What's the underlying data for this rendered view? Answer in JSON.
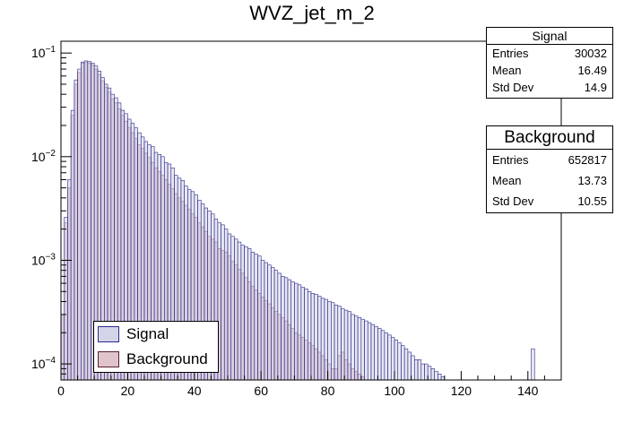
{
  "chart_data": {
    "type": "histogram",
    "title": "WVZ_jet_m_2",
    "xlabel": "",
    "ylabel": "",
    "xlim": [
      0,
      150
    ],
    "ylim": [
      7e-05,
      0.13
    ],
    "yscale": "log",
    "bin_width": 1,
    "x_ticks": [
      0,
      20,
      40,
      60,
      80,
      100,
      120,
      140
    ],
    "y_ticks": [
      {
        "value": 0.1,
        "base": "10",
        "exp": "−1"
      },
      {
        "value": 0.01,
        "base": "10",
        "exp": "−2"
      },
      {
        "value": 0.001,
        "base": "10",
        "exp": "−3"
      },
      {
        "value": 0.0001,
        "base": "10",
        "exp": "−4"
      }
    ],
    "series": [
      {
        "name": "Signal",
        "line_color": "#2b2b8c",
        "fill_color": "#d4d4e8",
        "values": [
          0.0003,
          0.0026,
          0.006,
          0.028,
          0.055,
          0.07,
          0.082,
          0.084,
          0.083,
          0.08,
          0.075,
          0.067,
          0.058,
          0.05,
          0.046,
          0.04,
          0.037,
          0.033,
          0.028,
          0.026,
          0.023,
          0.021,
          0.019,
          0.017,
          0.0155,
          0.014,
          0.013,
          0.0125,
          0.011,
          0.0105,
          0.01,
          0.0088,
          0.0085,
          0.0078,
          0.0066,
          0.0062,
          0.0059,
          0.0052,
          0.0048,
          0.0046,
          0.0043,
          0.0038,
          0.0035,
          0.0032,
          0.003,
          0.0028,
          0.0025,
          0.0023,
          0.0022,
          0.002,
          0.0018,
          0.0017,
          0.0016,
          0.0015,
          0.0014,
          0.00135,
          0.0013,
          0.0012,
          0.00115,
          0.0011,
          0.001,
          0.00095,
          0.0009,
          0.00085,
          0.0008,
          0.00075,
          0.0007,
          0.00068,
          0.00065,
          0.00062,
          0.0006,
          0.00058,
          0.00055,
          0.00053,
          0.0005,
          0.00048,
          0.00047,
          0.00045,
          0.00043,
          0.00042,
          0.0004,
          0.00039,
          0.00037,
          0.00036,
          0.00034,
          0.00033,
          0.00032,
          0.0003,
          0.00029,
          0.00028,
          0.00027,
          0.00026,
          0.00025,
          0.00024,
          0.00023,
          0.00022,
          0.00021,
          0.0002,
          0.00019,
          0.00018,
          0.00017,
          0.00016,
          0.00015,
          0.00014,
          0.00013,
          0.00012,
          0.00011,
          0.00011,
          0.0001,
          0.0001,
          9.5e-05,
          9e-05,
          8.5e-05,
          8e-05,
          7.5e-05,
          7e-05,
          7e-05,
          7e-05,
          7e-05,
          7e-05,
          7e-05,
          7e-05,
          7e-05,
          7e-05,
          7e-05,
          7e-05,
          7e-05,
          7e-05,
          7e-05,
          7e-05,
          7e-05,
          7e-05,
          7e-05,
          7e-05,
          7e-05,
          7e-05,
          7e-05,
          7e-05,
          7e-05,
          7e-05,
          7e-05,
          0.00014,
          7e-05,
          7e-05,
          7e-05,
          7e-05,
          7e-05,
          7e-05
        ]
      },
      {
        "name": "Background",
        "line_color": "#5a1e2e",
        "fill_color": "#e0c4cc",
        "values": [
          0.0003,
          0.0023,
          0.005,
          0.025,
          0.05,
          0.065,
          0.08,
          0.081,
          0.08,
          0.077,
          0.07,
          0.062,
          0.054,
          0.047,
          0.042,
          0.036,
          0.033,
          0.029,
          0.025,
          0.022,
          0.019,
          0.017,
          0.015,
          0.013,
          0.012,
          0.0108,
          0.0098,
          0.0088,
          0.0078,
          0.0072,
          0.0066,
          0.006,
          0.0054,
          0.0049,
          0.0044,
          0.004,
          0.0037,
          0.0034,
          0.0031,
          0.0028,
          0.0026,
          0.0023,
          0.0021,
          0.0019,
          0.0017,
          0.0016,
          0.0015,
          0.0013,
          0.00125,
          0.0012,
          0.0011,
          0.00098,
          0.0009,
          0.00082,
          0.00075,
          0.00068,
          0.00062,
          0.00056,
          0.00052,
          0.00048,
          0.00044,
          0.00041,
          0.00038,
          0.00035,
          0.00032,
          0.0003,
          0.00028,
          0.00026,
          0.00024,
          0.00022,
          0.0002,
          0.00019,
          0.00018,
          0.00017,
          0.00016,
          0.00015,
          0.00014,
          0.00013,
          0.00012,
          0.00011,
          0.0001,
          9e-05,
          9e-05,
          0.00012,
          0.00013,
          0.00011,
          0.0001,
          9e-05,
          8.5e-05,
          8e-05,
          7.5e-05,
          7e-05,
          7e-05,
          7e-05,
          7e-05,
          7e-05,
          7e-05,
          7e-05,
          7e-05,
          7e-05,
          7e-05,
          7e-05,
          7e-05,
          7e-05,
          7e-05,
          7e-05,
          7e-05,
          7e-05,
          7e-05,
          7e-05,
          7e-05,
          7e-05,
          7e-05,
          7e-05,
          7e-05,
          7e-05,
          7e-05,
          7e-05,
          7e-05,
          7e-05,
          7e-05,
          7e-05,
          7e-05,
          7e-05,
          7e-05,
          7e-05,
          7e-05,
          7e-05,
          7e-05,
          7e-05,
          7e-05,
          7e-05,
          7e-05,
          7e-05,
          7e-05,
          7e-05,
          7e-05,
          7e-05,
          7e-05,
          7e-05,
          7e-05,
          7e-05,
          7e-05,
          7e-05,
          7e-05,
          7e-05,
          7e-05,
          7e-05
        ]
      }
    ]
  },
  "stats": {
    "signal": {
      "title": "Signal",
      "rows": [
        {
          "label": "Entries",
          "value": "30032"
        },
        {
          "label": "Mean",
          "value": "16.49"
        },
        {
          "label": "Std Dev",
          "value": "14.9"
        }
      ]
    },
    "background": {
      "title": "Background",
      "rows": [
        {
          "label": "Entries",
          "value": "652817"
        },
        {
          "label": "Mean",
          "value": "13.73"
        },
        {
          "label": "Std Dev",
          "value": "10.55"
        }
      ]
    }
  },
  "legend": {
    "entries": [
      {
        "label": "Signal",
        "color": "#d4d4e8",
        "border": "#2b2b8c"
      },
      {
        "label": "Background",
        "color": "#e0c4cc",
        "border": "#5a1e2e"
      }
    ]
  }
}
